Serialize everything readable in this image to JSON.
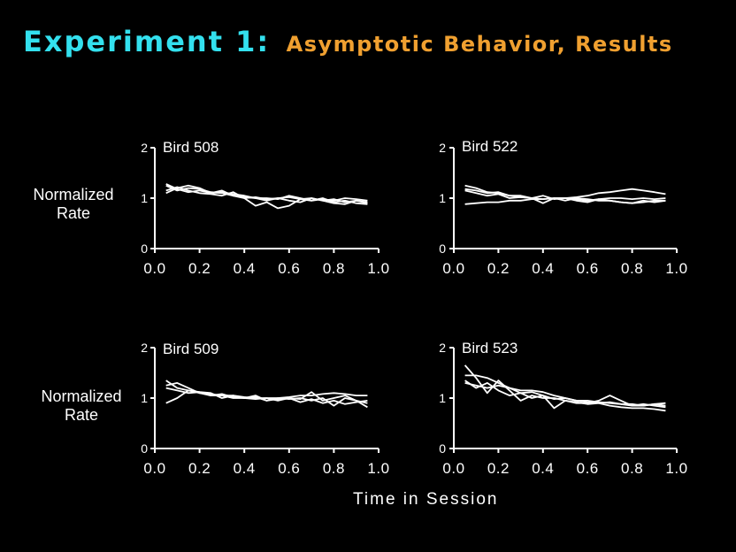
{
  "title": {
    "main": "Experiment 1:",
    "sub": "Asymptotic Behavior, Results"
  },
  "axis": {
    "ylabel": "Normalized\nRate",
    "xlabel": "Time in Session"
  },
  "colors": {
    "background": "#000000",
    "title_main": "#33e0ee",
    "title_sub": "#f0a030",
    "lines": "#ffffff"
  },
  "chart_data": [
    {
      "type": "line",
      "title": "Bird 508",
      "xlim": [
        0,
        1
      ],
      "ylim": [
        0,
        2
      ],
      "xticks": [
        "0.0",
        "0.2",
        "0.4",
        "0.6",
        "0.8",
        "1.0"
      ],
      "yticks": [
        "0",
        "1",
        "2"
      ],
      "x": [
        0.05,
        0.1,
        0.15,
        0.2,
        0.25,
        0.3,
        0.35,
        0.4,
        0.45,
        0.5,
        0.55,
        0.6,
        0.65,
        0.7,
        0.75,
        0.8,
        0.85,
        0.9,
        0.95
      ],
      "series": [
        {
          "values": [
            1.25,
            1.15,
            1.2,
            1.18,
            1.12,
            1.1,
            1.05,
            1.0,
            0.85,
            0.92,
            0.8,
            0.85,
            0.98,
            0.95,
            1.0,
            0.92,
            0.95,
            0.9,
            0.88
          ]
        },
        {
          "values": [
            1.15,
            1.22,
            1.15,
            1.1,
            1.08,
            1.05,
            1.12,
            1.0,
            1.02,
            0.98,
            1.0,
            0.95,
            0.92,
            1.0,
            0.95,
            0.9,
            0.88,
            0.95,
            0.92
          ]
        },
        {
          "values": [
            1.1,
            1.2,
            1.25,
            1.2,
            1.1,
            1.15,
            1.05,
            1.02,
            1.0,
            1.0,
            0.98,
            1.05,
            1.0,
            0.95,
            0.98,
            0.95,
            1.0,
            0.98,
            0.95
          ]
        },
        {
          "values": [
            1.28,
            1.18,
            1.12,
            1.15,
            1.1,
            1.12,
            1.08,
            1.05,
            1.0,
            0.95,
            1.0,
            1.02,
            0.98,
            1.0,
            0.95,
            0.98,
            0.92,
            0.95,
            0.9
          ]
        }
      ]
    },
    {
      "type": "line",
      "title": "Bird 522",
      "xlim": [
        0,
        1
      ],
      "ylim": [
        0,
        2
      ],
      "xticks": [
        "0.0",
        "0.2",
        "0.4",
        "0.6",
        "0.8",
        "1.0"
      ],
      "yticks": [
        "0",
        "1",
        "2"
      ],
      "x": [
        0.05,
        0.1,
        0.15,
        0.2,
        0.25,
        0.3,
        0.35,
        0.4,
        0.45,
        0.5,
        0.55,
        0.6,
        0.65,
        0.7,
        0.75,
        0.8,
        0.85,
        0.9,
        0.95
      ],
      "series": [
        {
          "values": [
            1.25,
            1.2,
            1.12,
            1.1,
            1.05,
            1.05,
            1.0,
            0.98,
            1.0,
            0.95,
            1.0,
            0.98,
            0.95,
            0.95,
            0.92,
            0.9,
            0.92,
            0.95,
            0.95
          ]
        },
        {
          "values": [
            1.18,
            1.15,
            1.1,
            1.12,
            1.05,
            1.02,
            1.0,
            1.05,
            0.98,
            1.0,
            0.98,
            0.95,
            0.98,
            1.0,
            1.0,
            0.98,
            1.0,
            0.98,
            1.0
          ]
        },
        {
          "values": [
            0.88,
            0.9,
            0.92,
            0.92,
            0.95,
            0.95,
            0.98,
            0.98,
            1.0,
            1.0,
            1.02,
            1.05,
            1.1,
            1.12,
            1.15,
            1.18,
            1.15,
            1.12,
            1.08
          ]
        },
        {
          "values": [
            1.15,
            1.1,
            1.05,
            1.08,
            1.0,
            1.02,
            1.0,
            0.9,
            1.0,
            1.0,
            0.95,
            0.92,
            0.98,
            0.95,
            0.92,
            0.9,
            0.95,
            0.92,
            0.95
          ]
        }
      ]
    },
    {
      "type": "line",
      "title": "Bird 509",
      "xlim": [
        0,
        1
      ],
      "ylim": [
        0,
        2
      ],
      "xticks": [
        "0.0",
        "0.2",
        "0.4",
        "0.6",
        "0.8",
        "1.0"
      ],
      "yticks": [
        "0",
        "1",
        "2"
      ],
      "x": [
        0.05,
        0.1,
        0.15,
        0.2,
        0.25,
        0.3,
        0.35,
        0.4,
        0.45,
        0.5,
        0.55,
        0.6,
        0.65,
        0.7,
        0.75,
        0.8,
        0.85,
        0.9,
        0.95
      ],
      "series": [
        {
          "values": [
            1.35,
            1.2,
            1.15,
            1.1,
            1.05,
            1.05,
            1.0,
            1.0,
            0.98,
            1.0,
            0.95,
            1.0,
            0.98,
            1.12,
            0.95,
            1.0,
            1.05,
            0.95,
            0.9
          ]
        },
        {
          "values": [
            1.25,
            1.3,
            1.2,
            1.1,
            1.08,
            1.05,
            1.05,
            1.0,
            1.02,
            0.95,
            1.0,
            0.98,
            1.0,
            0.95,
            1.0,
            0.85,
            1.0,
            0.95,
            0.82
          ]
        },
        {
          "values": [
            0.9,
            1.0,
            1.15,
            1.12,
            1.1,
            1.0,
            1.05,
            1.02,
            1.0,
            1.0,
            1.0,
            1.02,
            1.05,
            1.05,
            1.08,
            1.1,
            1.08,
            1.05,
            1.05
          ]
        },
        {
          "values": [
            1.2,
            1.15,
            1.1,
            1.12,
            1.05,
            1.08,
            1.02,
            1.0,
            1.05,
            0.95,
            0.98,
            1.0,
            0.92,
            0.98,
            0.9,
            0.95,
            0.88,
            0.92,
            0.95
          ]
        }
      ]
    },
    {
      "type": "line",
      "title": "Bird 523",
      "xlim": [
        0,
        1
      ],
      "ylim": [
        0,
        2
      ],
      "xticks": [
        "0.0",
        "0.2",
        "0.4",
        "0.6",
        "0.8",
        "1.0"
      ],
      "yticks": [
        "0",
        "1",
        "2"
      ],
      "x": [
        0.05,
        0.1,
        0.15,
        0.2,
        0.25,
        0.3,
        0.35,
        0.4,
        0.45,
        0.5,
        0.55,
        0.6,
        0.65,
        0.7,
        0.75,
        0.8,
        0.85,
        0.9,
        0.95
      ],
      "series": [
        {
          "values": [
            1.65,
            1.4,
            1.1,
            1.35,
            1.15,
            0.95,
            1.05,
            1.0,
            1.0,
            0.95,
            0.9,
            0.9,
            0.95,
            1.05,
            0.95,
            0.85,
            0.85,
            0.88,
            0.85
          ]
        },
        {
          "values": [
            1.45,
            1.45,
            1.4,
            1.3,
            1.2,
            1.15,
            1.15,
            1.12,
            1.05,
            1.0,
            0.95,
            0.95,
            0.92,
            0.9,
            0.88,
            0.88,
            0.85,
            0.88,
            0.9
          ]
        },
        {
          "values": [
            1.3,
            1.25,
            1.2,
            1.25,
            1.2,
            1.1,
            1.12,
            1.05,
            0.98,
            1.0,
            0.95,
            0.92,
            0.9,
            0.85,
            0.82,
            0.8,
            0.8,
            0.78,
            0.75
          ]
        },
        {
          "values": [
            1.35,
            1.2,
            1.3,
            1.15,
            1.05,
            1.1,
            1.0,
            1.05,
            0.8,
            0.95,
            0.92,
            0.88,
            0.9,
            0.92,
            0.88,
            0.85,
            0.88,
            0.85,
            0.82
          ]
        }
      ]
    }
  ]
}
